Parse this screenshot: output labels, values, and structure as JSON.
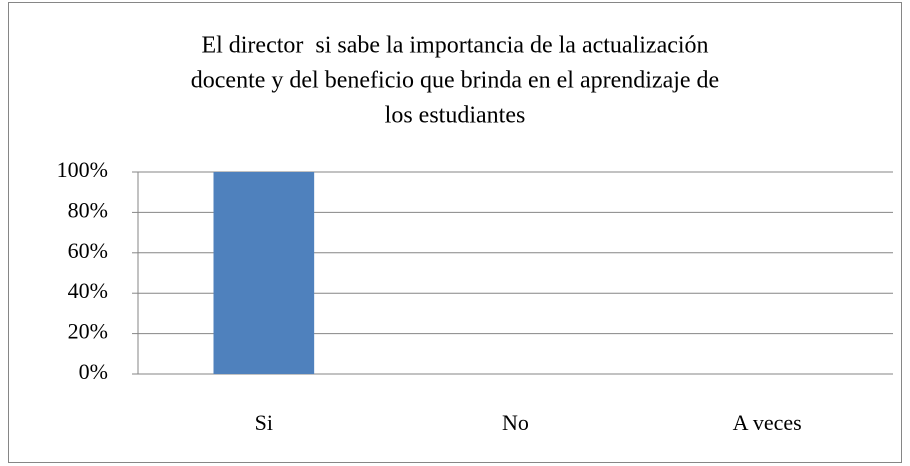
{
  "chart_data": {
    "type": "bar",
    "title": [
      "El director  si sabe la importancia de la actualización",
      "docente y del beneficio que brinda en el aprendizaje de",
      "los estudiantes"
    ],
    "categories": [
      "Si",
      "No",
      "A veces"
    ],
    "values": [
      100,
      0,
      0
    ],
    "color": "#4f81bd",
    "ylim": [
      0,
      100
    ],
    "yticks": [
      {
        "value": 0,
        "label": "0%"
      },
      {
        "value": 20,
        "label": "20%"
      },
      {
        "value": 40,
        "label": "40%"
      },
      {
        "value": 60,
        "label": "60%"
      },
      {
        "value": 80,
        "label": "80%"
      },
      {
        "value": 100,
        "label": "100%"
      }
    ],
    "grid": true
  }
}
